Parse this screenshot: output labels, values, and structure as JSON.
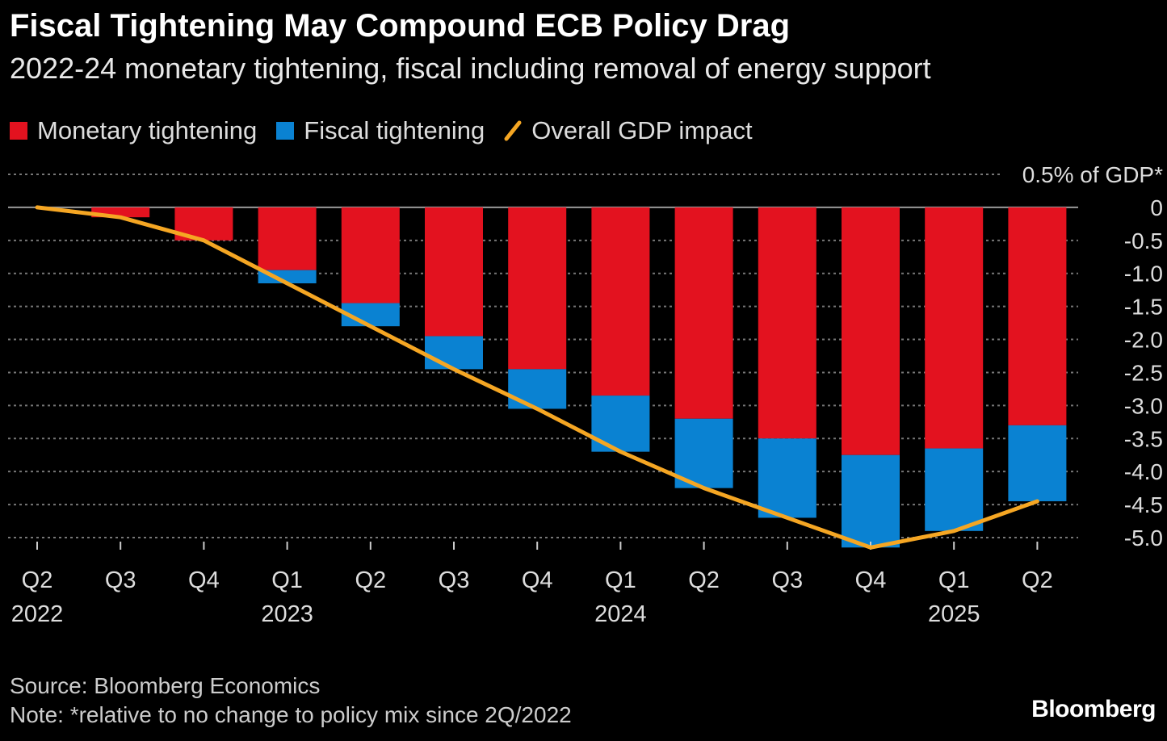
{
  "title": "Fiscal Tightening May Compound ECB Policy Drag",
  "subtitle": "2022-24 monetary tightening, fiscal including removal of energy support",
  "legend": {
    "monetary": "Monetary tightening",
    "fiscal": "Fiscal tightening",
    "overall": "Overall GDP impact"
  },
  "source": "Source: Bloomberg Economics",
  "note": "Note: *relative to no change to policy mix since 2Q/2022",
  "brand": "Bloomberg",
  "colors": {
    "monetary": "#e3121f",
    "fiscal": "#0a82d2",
    "overall": "#f5a623",
    "grid": "#777777"
  },
  "chart_data": {
    "type": "bar",
    "stacked": true,
    "unit_label": "0.5% of GDP*",
    "categories": [
      "Q2",
      "Q3",
      "Q4",
      "Q1",
      "Q2",
      "Q3",
      "Q4",
      "Q1",
      "Q2",
      "Q3",
      "Q4",
      "Q1",
      "Q2"
    ],
    "year_labels": [
      {
        "index": 0,
        "label": "2022"
      },
      {
        "index": 3,
        "label": "2023"
      },
      {
        "index": 7,
        "label": "2024"
      },
      {
        "index": 11,
        "label": "2025"
      }
    ],
    "series": [
      {
        "name": "Monetary tightening",
        "type": "bar",
        "values": [
          0,
          -0.15,
          -0.5,
          -0.95,
          -1.45,
          -1.95,
          -2.45,
          -2.85,
          -3.2,
          -3.5,
          -3.75,
          -3.65,
          -3.3
        ]
      },
      {
        "name": "Fiscal tightening",
        "type": "bar",
        "values": [
          0,
          0,
          0,
          -0.2,
          -0.35,
          -0.5,
          -0.6,
          -0.85,
          -1.05,
          -1.2,
          -1.4,
          -1.25,
          -1.15
        ]
      },
      {
        "name": "Overall GDP impact",
        "type": "line",
        "values": [
          0,
          -0.15,
          -0.5,
          -1.15,
          -1.8,
          -2.45,
          -3.05,
          -3.7,
          -4.25,
          -4.7,
          -5.15,
          -4.9,
          -4.45
        ]
      }
    ],
    "y_ticks": [
      "0",
      "-0.5",
      "-1.0",
      "-1.5",
      "-2.0",
      "-2.5",
      "-3.0",
      "-3.5",
      "-4.0",
      "-4.5",
      "-5.0"
    ],
    "ylim": [
      -5.0,
      0.5
    ],
    "grid": true,
    "axis_position": "right",
    "legend_position": "top-left"
  }
}
